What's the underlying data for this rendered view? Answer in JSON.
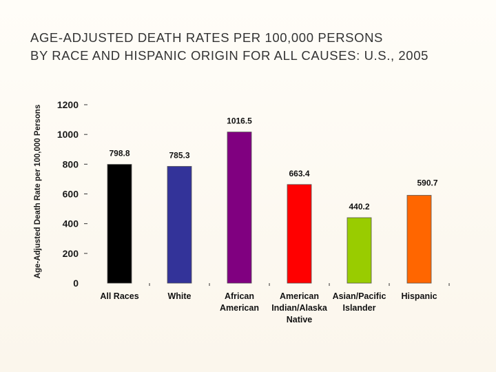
{
  "title_lines": [
    "AGE-ADJUSTED DEATH RATES PER 100,000 PERSONS",
    "BY RACE AND HISPANIC ORIGIN FOR ALL CAUSES: U.S., 2005"
  ],
  "chart_data": {
    "type": "bar",
    "title": "AGE-ADJUSTED DEATH RATES PER 100,000 PERSONS BY RACE AND HISPANIC ORIGIN FOR ALL CAUSES: U.S., 2005",
    "xlabel": "",
    "ylabel": "Age-Adjusted Death Rate per 100,000 Persons",
    "ylim": [
      0,
      1200
    ],
    "yticks": [
      0,
      200,
      400,
      600,
      800,
      1000,
      1200
    ],
    "grid": false,
    "categories": [
      [
        "All Races"
      ],
      [
        "White"
      ],
      [
        "African",
        "American"
      ],
      [
        "American",
        "Indian/Alaska",
        "Native"
      ],
      [
        "Asian/Pacific",
        "Islander"
      ],
      [
        "Hispanic"
      ]
    ],
    "values": [
      798.8,
      785.3,
      1016.5,
      663.4,
      440.2,
      590.7
    ],
    "value_labels": [
      "798.8",
      "785.3",
      "1016.5",
      "663.4",
      "440.2",
      "590.7"
    ],
    "colors": [
      "#000000",
      "#333399",
      "#800080",
      "#ff0000",
      "#99cc00",
      "#ff6600"
    ]
  }
}
